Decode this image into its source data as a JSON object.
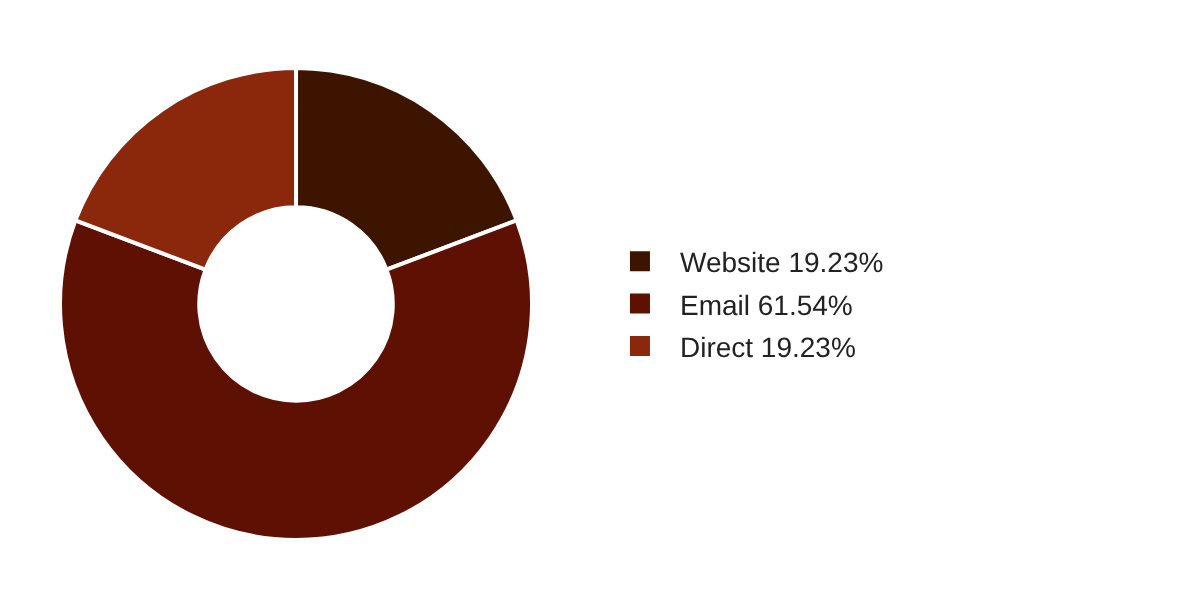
{
  "chart_data": {
    "type": "donut",
    "categories": [
      "Website",
      "Email",
      "Direct"
    ],
    "values": [
      19.23,
      61.54,
      19.23
    ],
    "value_labels": [
      "19.23%",
      "61.54%",
      "19.23%"
    ],
    "colors": [
      "#3d1400",
      "#5e1003",
      "#8b280b"
    ],
    "legend": "right"
  }
}
